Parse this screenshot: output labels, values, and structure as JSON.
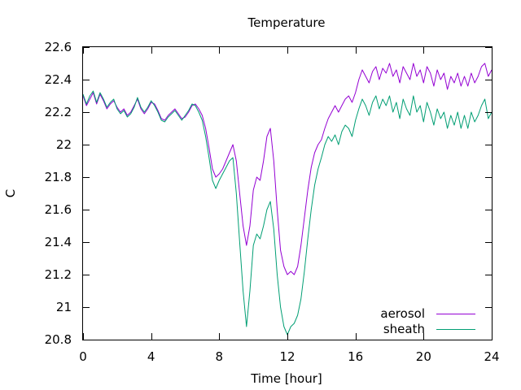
{
  "chart_data": {
    "type": "line",
    "title": "Temperature",
    "xlabel": "Time [hour]",
    "ylabel": "C",
    "xlim": [
      0,
      24
    ],
    "ylim": [
      20.8,
      22.6
    ],
    "xticks": [
      0,
      4,
      8,
      12,
      16,
      20,
      24
    ],
    "xtick_labels": [
      "0",
      "4",
      "8",
      "12",
      "16",
      "20",
      "24"
    ],
    "yticks": [
      20.8,
      21.0,
      21.2,
      21.4,
      21.6,
      21.8,
      22.0,
      22.2,
      22.4,
      22.6
    ],
    "ytick_labels": [
      "20.8",
      "21",
      "21.2",
      "21.4",
      "21.6",
      "21.8",
      "22",
      "22.2",
      "22.4",
      "22.6"
    ],
    "grid": false,
    "legend_position": "bottom-right",
    "series": [
      {
        "name": "aerosol",
        "color": "#9400d3",
        "x": [
          0.0,
          0.2,
          0.4,
          0.6,
          0.8,
          1.0,
          1.2,
          1.4,
          1.6,
          1.8,
          2.0,
          2.2,
          2.4,
          2.6,
          2.8,
          3.0,
          3.2,
          3.4,
          3.6,
          3.8,
          4.0,
          4.2,
          4.4,
          4.6,
          4.8,
          5.0,
          5.2,
          5.4,
          5.6,
          5.8,
          6.0,
          6.2,
          6.4,
          6.6,
          6.8,
          7.0,
          7.2,
          7.4,
          7.6,
          7.8,
          8.0,
          8.2,
          8.4,
          8.6,
          8.8,
          9.0,
          9.2,
          9.4,
          9.6,
          9.8,
          10.0,
          10.2,
          10.4,
          10.6,
          10.8,
          11.0,
          11.2,
          11.4,
          11.6,
          11.8,
          12.0,
          12.2,
          12.4,
          12.6,
          12.8,
          13.0,
          13.2,
          13.4,
          13.6,
          13.8,
          14.0,
          14.2,
          14.4,
          14.6,
          14.8,
          15.0,
          15.2,
          15.4,
          15.6,
          15.8,
          16.0,
          16.2,
          16.4,
          16.6,
          16.8,
          17.0,
          17.2,
          17.4,
          17.6,
          17.8,
          18.0,
          18.2,
          18.4,
          18.6,
          18.8,
          19.0,
          19.2,
          19.4,
          19.6,
          19.8,
          20.0,
          20.2,
          20.4,
          20.6,
          20.8,
          21.0,
          21.2,
          21.4,
          21.6,
          21.8,
          22.0,
          22.2,
          22.4,
          22.6,
          22.8,
          23.0,
          23.2,
          23.4,
          23.6,
          23.8,
          24.0
        ],
        "values": [
          22.3,
          22.24,
          22.28,
          22.32,
          22.25,
          22.31,
          22.27,
          22.22,
          22.25,
          22.27,
          22.23,
          22.2,
          22.22,
          22.18,
          22.2,
          22.24,
          22.28,
          22.22,
          22.19,
          22.22,
          22.26,
          22.25,
          22.21,
          22.16,
          22.15,
          22.18,
          22.2,
          22.22,
          22.19,
          22.16,
          22.17,
          22.2,
          22.24,
          22.25,
          22.22,
          22.18,
          22.1,
          21.98,
          21.85,
          21.8,
          21.82,
          21.85,
          21.9,
          21.95,
          22.0,
          21.9,
          21.7,
          21.5,
          21.38,
          21.5,
          21.72,
          21.8,
          21.78,
          21.9,
          22.05,
          22.1,
          21.9,
          21.6,
          21.35,
          21.25,
          21.2,
          21.22,
          21.2,
          21.25,
          21.38,
          21.55,
          21.72,
          21.86,
          21.95,
          22.0,
          22.03,
          22.1,
          22.16,
          22.2,
          22.24,
          22.2,
          22.24,
          22.28,
          22.3,
          22.26,
          22.32,
          22.4,
          22.46,
          22.42,
          22.38,
          22.45,
          22.48,
          22.4,
          22.47,
          22.44,
          22.5,
          22.42,
          22.46,
          22.38,
          22.48,
          22.44,
          22.4,
          22.5,
          22.42,
          22.46,
          22.38,
          22.48,
          22.44,
          22.36,
          22.46,
          22.4,
          22.44,
          22.34,
          22.42,
          22.38,
          22.44,
          22.36,
          22.42,
          22.36,
          22.44,
          22.38,
          22.42,
          22.48,
          22.5,
          22.42,
          22.46
        ]
      },
      {
        "name": "sheath",
        "color": "#009e73",
        "x": [
          0.0,
          0.2,
          0.4,
          0.6,
          0.8,
          1.0,
          1.2,
          1.4,
          1.6,
          1.8,
          2.0,
          2.2,
          2.4,
          2.6,
          2.8,
          3.0,
          3.2,
          3.4,
          3.6,
          3.8,
          4.0,
          4.2,
          4.4,
          4.6,
          4.8,
          5.0,
          5.2,
          5.4,
          5.6,
          5.8,
          6.0,
          6.2,
          6.4,
          6.6,
          6.8,
          7.0,
          7.2,
          7.4,
          7.6,
          7.8,
          8.0,
          8.2,
          8.4,
          8.6,
          8.8,
          9.0,
          9.2,
          9.4,
          9.6,
          9.8,
          10.0,
          10.2,
          10.4,
          10.6,
          10.8,
          11.0,
          11.2,
          11.4,
          11.6,
          11.8,
          12.0,
          12.2,
          12.4,
          12.6,
          12.8,
          13.0,
          13.2,
          13.4,
          13.6,
          13.8,
          14.0,
          14.2,
          14.4,
          14.6,
          14.8,
          15.0,
          15.2,
          15.4,
          15.6,
          15.8,
          16.0,
          16.2,
          16.4,
          16.6,
          16.8,
          17.0,
          17.2,
          17.4,
          17.6,
          17.8,
          18.0,
          18.2,
          18.4,
          18.6,
          18.8,
          19.0,
          19.2,
          19.4,
          19.6,
          19.8,
          20.0,
          20.2,
          20.4,
          20.6,
          20.8,
          21.0,
          21.2,
          21.4,
          21.6,
          21.8,
          22.0,
          22.2,
          22.4,
          22.6,
          22.8,
          23.0,
          23.2,
          23.4,
          23.6,
          23.8,
          24.0
        ],
        "values": [
          22.31,
          22.25,
          22.3,
          22.33,
          22.26,
          22.32,
          22.28,
          22.23,
          22.26,
          22.28,
          22.22,
          22.19,
          22.21,
          22.17,
          22.19,
          22.23,
          22.29,
          22.23,
          22.2,
          22.23,
          22.27,
          22.24,
          22.2,
          22.15,
          22.14,
          22.17,
          22.19,
          22.21,
          22.18,
          22.15,
          22.18,
          22.21,
          22.25,
          22.24,
          22.2,
          22.15,
          22.05,
          21.92,
          21.78,
          21.73,
          21.78,
          21.82,
          21.86,
          21.9,
          21.92,
          21.7,
          21.4,
          21.1,
          20.88,
          21.1,
          21.38,
          21.45,
          21.42,
          21.5,
          21.6,
          21.65,
          21.48,
          21.2,
          21.0,
          20.88,
          20.83,
          20.88,
          20.9,
          20.95,
          21.05,
          21.22,
          21.42,
          21.6,
          21.75,
          21.85,
          21.92,
          22.0,
          22.05,
          22.02,
          22.06,
          22.0,
          22.08,
          22.12,
          22.1,
          22.05,
          22.15,
          22.22,
          22.28,
          22.24,
          22.18,
          22.26,
          22.3,
          22.22,
          22.28,
          22.24,
          22.3,
          22.2,
          22.26,
          22.16,
          22.28,
          22.22,
          22.18,
          22.3,
          22.2,
          22.24,
          22.14,
          22.26,
          22.2,
          22.12,
          22.22,
          22.16,
          22.2,
          22.1,
          22.18,
          22.12,
          22.2,
          22.1,
          22.18,
          22.1,
          22.2,
          22.14,
          22.18,
          22.24,
          22.28,
          22.16,
          22.2
        ]
      }
    ]
  }
}
